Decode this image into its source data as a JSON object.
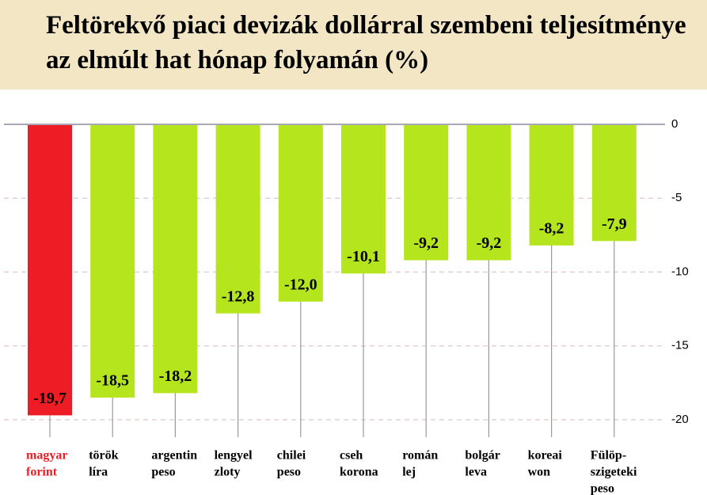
{
  "chart_data": {
    "type": "bar",
    "title": "Feltörekvő piaci devizák dollárral szembeni teljesítménye az elmúlt hat hónap folyamán (%)",
    "categories": [
      [
        "magyar",
        "forint"
      ],
      [
        "török",
        "líra"
      ],
      [
        "argentin",
        "peso"
      ],
      [
        "lengyel",
        "zloty"
      ],
      [
        "chilei",
        "peso"
      ],
      [
        "cseh",
        "korona"
      ],
      [
        "román",
        "lej"
      ],
      [
        "bolgár",
        "leva"
      ],
      [
        "koreai",
        "won"
      ],
      [
        "Fülöp-",
        "szigeteki",
        "peso"
      ]
    ],
    "values": [
      -19.7,
      -18.5,
      -18.2,
      -12.8,
      -12.0,
      -10.1,
      -9.2,
      -9.2,
      -8.2,
      -7.9
    ],
    "value_labels": [
      "-19,7",
      "-18,5",
      "-18,2",
      "-12,8",
      "-12,0",
      "-10,1",
      "-9,2",
      "-9,2",
      "-8,2",
      "-7,9"
    ],
    "colors": [
      "#ee1c25",
      "#b5e61d",
      "#b5e61d",
      "#b5e61d",
      "#b5e61d",
      "#b5e61d",
      "#b5e61d",
      "#b5e61d",
      "#b5e61d",
      "#b5e61d"
    ],
    "label_colors": [
      "#ee1c25",
      "#000000",
      "#000000",
      "#000000",
      "#000000",
      "#000000",
      "#000000",
      "#000000",
      "#000000",
      "#000000"
    ],
    "ylim": [
      -20,
      0
    ],
    "yticks": [
      0,
      -5,
      -10,
      -15,
      -20
    ],
    "grid": true
  }
}
